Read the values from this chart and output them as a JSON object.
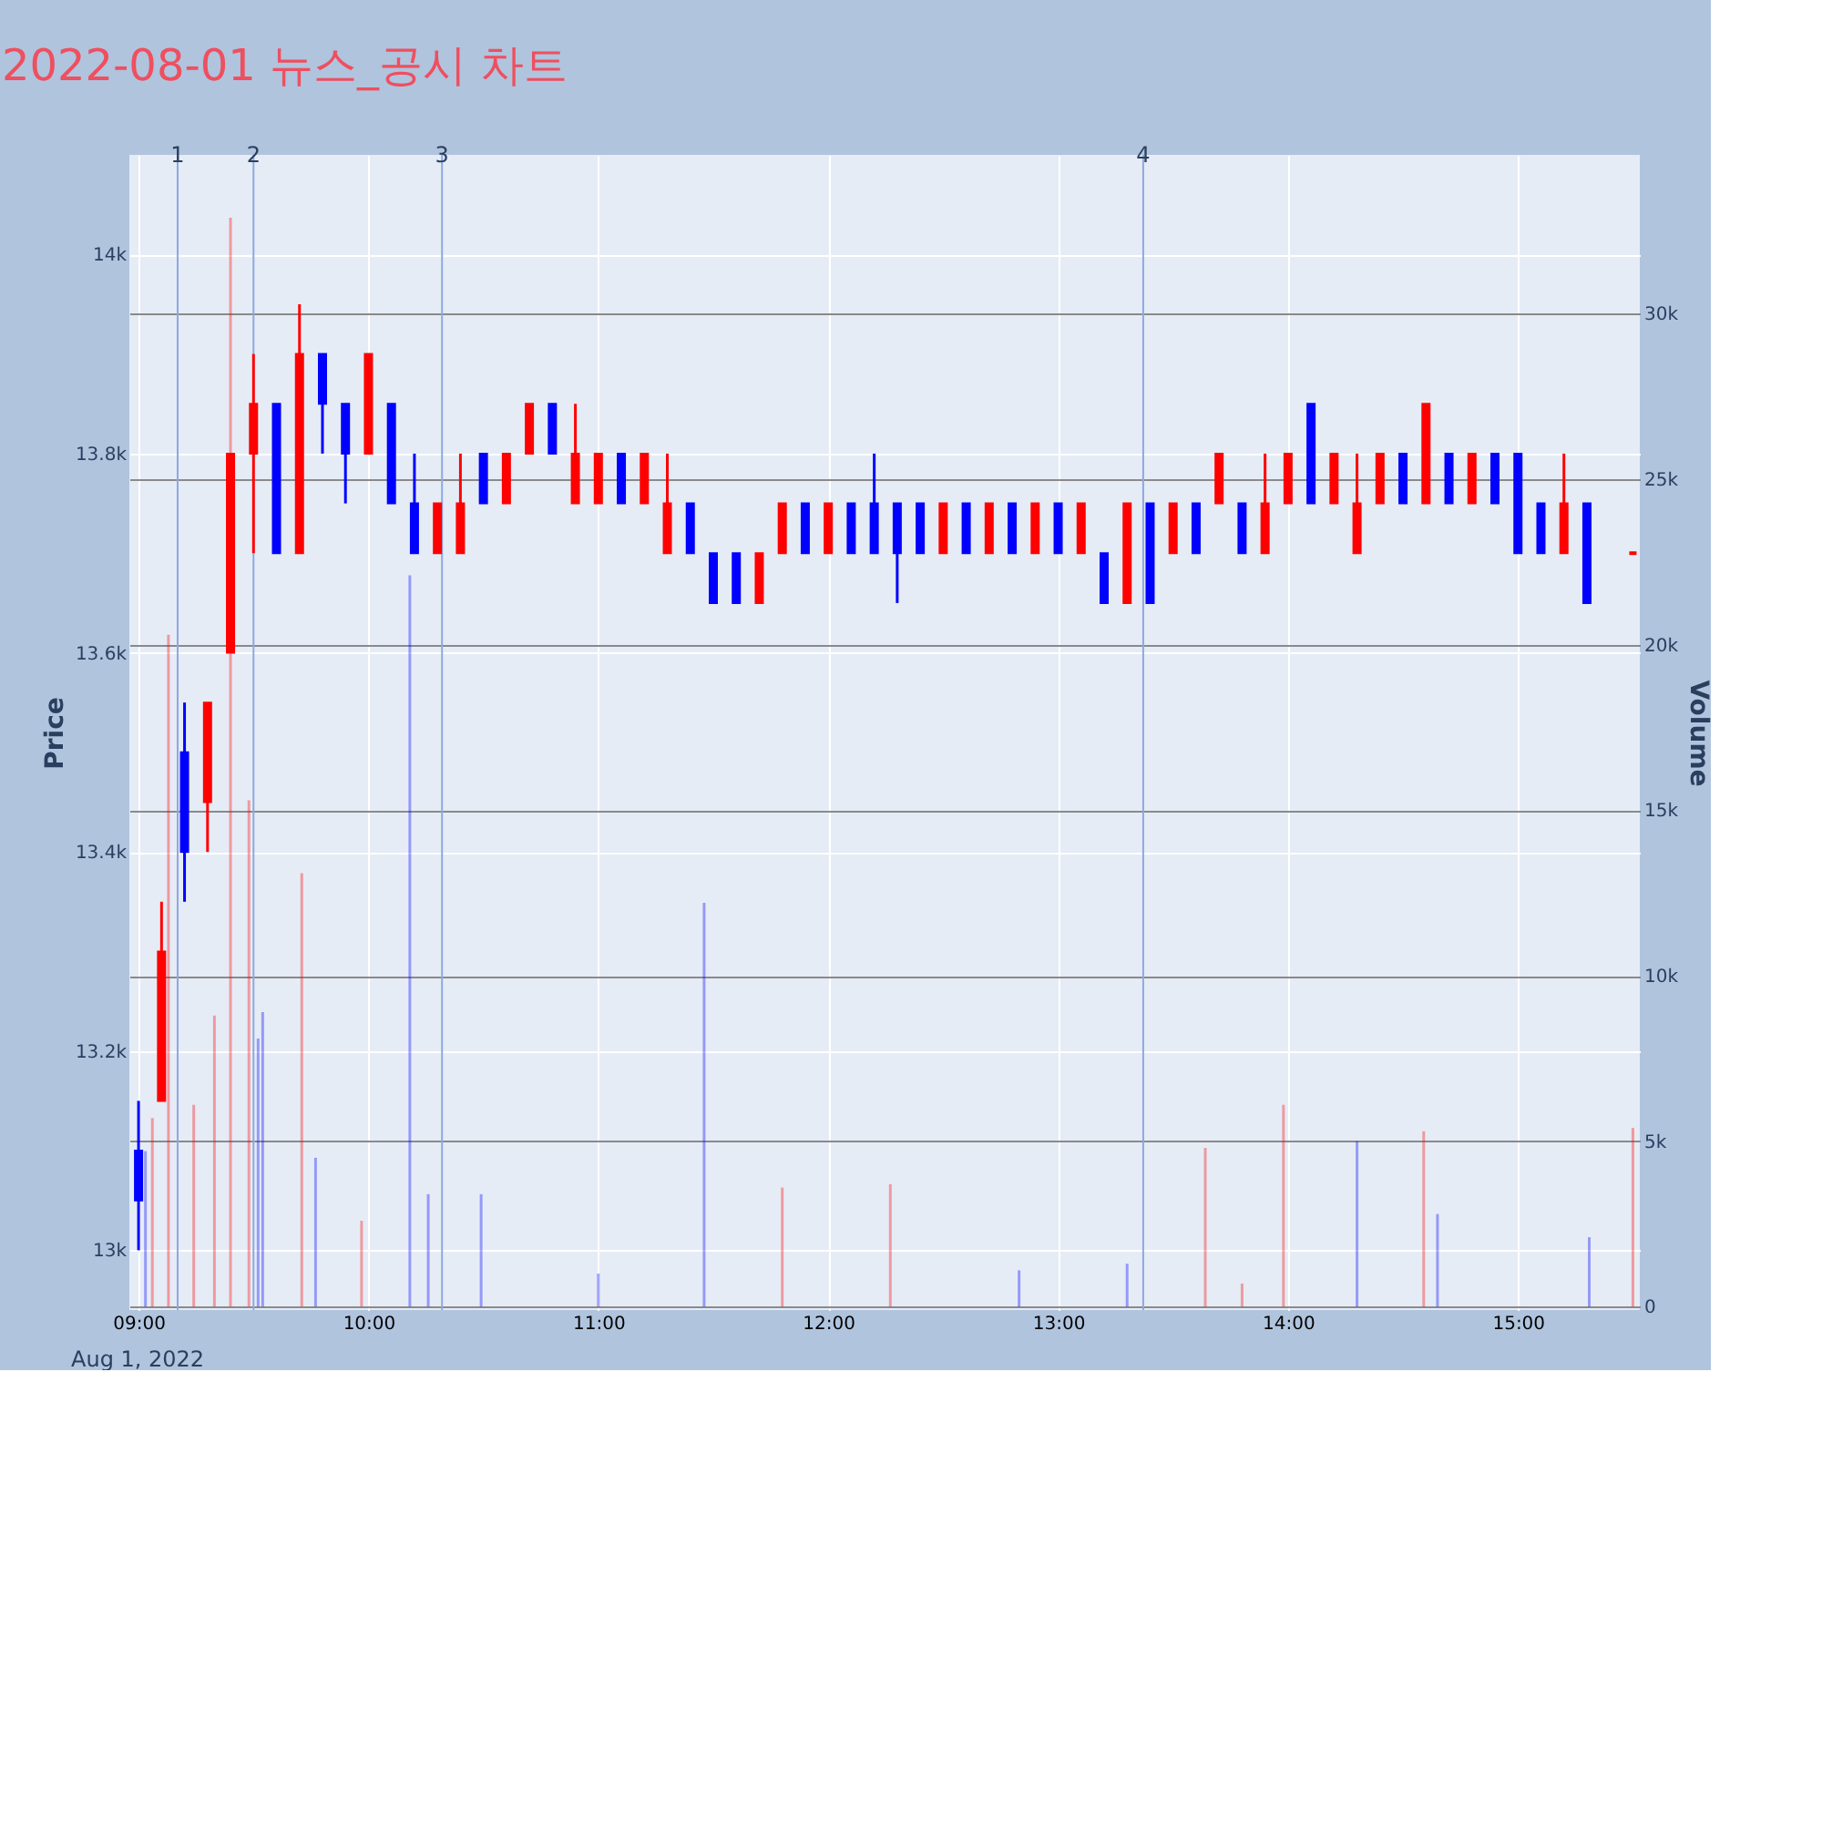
{
  "chart_data": {
    "type": "candlestick",
    "title": "2022-08-01 뉴스_공시 차트",
    "ylabel": "Price",
    "y2label": "Volume",
    "xlim": [
      8.96,
      15.53
    ],
    "xticks": [
      {
        "value": 9,
        "label": "09:00"
      },
      {
        "value": 10,
        "label": "10:00"
      },
      {
        "value": 11,
        "label": "11:00"
      },
      {
        "value": 12,
        "label": "12:00"
      },
      {
        "value": 13,
        "label": "13:00"
      },
      {
        "value": 14,
        "label": "14:00"
      },
      {
        "value": 15,
        "label": "15:00"
      }
    ],
    "ylim": [
      12940,
      14100
    ],
    "yticks": [
      {
        "value": 13000,
        "label": "13k"
      },
      {
        "value": 13200,
        "label": "13.2k"
      },
      {
        "value": 13400,
        "label": "13.4k"
      },
      {
        "value": 13600,
        "label": "13.6k"
      },
      {
        "value": 13800,
        "label": "13.8k"
      },
      {
        "value": 14000,
        "label": "14k"
      }
    ],
    "y2lim": [
      -100,
      34800
    ],
    "y2ticks": [
      {
        "value": 0,
        "label": "0"
      },
      {
        "value": 5000,
        "label": "5k"
      },
      {
        "value": 10000,
        "label": "10k"
      },
      {
        "value": 15000,
        "label": "15k"
      },
      {
        "value": 20000,
        "label": "20k"
      },
      {
        "value": 25000,
        "label": "25k"
      },
      {
        "value": 30000,
        "label": "30k"
      }
    ],
    "grid": true,
    "annotations": [
      "Aug 1, 2022",
      {
        "text": "1",
        "x": 9.17
      },
      {
        "text": "2",
        "x": 9.5
      },
      {
        "text": "3",
        "x": 10.32
      },
      {
        "text": "4",
        "x": 13.37
      }
    ],
    "ref_lines": [
      {
        "axis": "x",
        "value": 9.17,
        "color": "#8fa8e0"
      },
      {
        "axis": "x",
        "value": 9.5,
        "color": "#8fa8e0"
      },
      {
        "axis": "x",
        "value": 10.32,
        "color": "#8fa8e0"
      },
      {
        "axis": "x",
        "value": 13.37,
        "color": "#8fa8e0"
      }
    ],
    "series": [
      {
        "type": "candlestick",
        "x": [
          9.0,
          9.1,
          9.2,
          9.3,
          9.4,
          9.5,
          9.6,
          9.7,
          9.8,
          9.9,
          10.0,
          10.1,
          10.2,
          10.3,
          10.4,
          10.5,
          10.6,
          10.7,
          10.8,
          10.9,
          11.0,
          11.1,
          11.2,
          11.3,
          11.4,
          11.5,
          11.6,
          11.7,
          11.8,
          11.9,
          12.0,
          12.1,
          12.2,
          12.3,
          12.4,
          12.5,
          12.6,
          12.7,
          12.8,
          12.9,
          13.0,
          13.1,
          13.2,
          13.3,
          13.4,
          13.5,
          13.6,
          13.7,
          13.8,
          13.9,
          14.0,
          14.1,
          14.2,
          14.3,
          14.4,
          14.5,
          14.6,
          14.7,
          14.8,
          14.9,
          15.0,
          15.1,
          15.2,
          15.3,
          15.5
        ],
        "ohlc": [
          [
            13100,
            13150,
            13000,
            13050
          ],
          [
            13150,
            13350,
            13150,
            13300
          ],
          [
            13500,
            13550,
            13350,
            13400
          ],
          [
            13450,
            13550,
            13400,
            13550
          ],
          [
            13600,
            13800,
            13600,
            13800
          ],
          [
            13800,
            13900,
            13700,
            13850
          ],
          [
            13850,
            13850,
            13700,
            13700
          ],
          [
            13700,
            13950,
            13700,
            13900
          ],
          [
            13900,
            13900,
            13800,
            13850
          ],
          [
            13850,
            13850,
            13750,
            13800
          ],
          [
            13800,
            13900,
            13800,
            13900
          ],
          [
            13850,
            13850,
            13750,
            13750
          ],
          [
            13750,
            13800,
            13700,
            13700
          ],
          [
            13700,
            13750,
            13700,
            13750
          ],
          [
            13700,
            13800,
            13700,
            13750
          ],
          [
            13800,
            13800,
            13750,
            13750
          ],
          [
            13750,
            13800,
            13750,
            13800
          ],
          [
            13800,
            13850,
            13800,
            13850
          ],
          [
            13850,
            13850,
            13800,
            13800
          ],
          [
            13750,
            13850,
            13750,
            13800
          ],
          [
            13750,
            13800,
            13750,
            13800
          ],
          [
            13800,
            13800,
            13750,
            13750
          ],
          [
            13750,
            13800,
            13750,
            13800
          ],
          [
            13700,
            13800,
            13700,
            13750
          ],
          [
            13750,
            13750,
            13700,
            13700
          ],
          [
            13700,
            13700,
            13650,
            13650
          ],
          [
            13700,
            13700,
            13650,
            13650
          ],
          [
            13650,
            13700,
            13650,
            13700
          ],
          [
            13700,
            13750,
            13700,
            13750
          ],
          [
            13750,
            13750,
            13700,
            13700
          ],
          [
            13700,
            13750,
            13700,
            13750
          ],
          [
            13750,
            13750,
            13700,
            13700
          ],
          [
            13750,
            13800,
            13700,
            13700
          ],
          [
            13750,
            13750,
            13650,
            13700
          ],
          [
            13750,
            13750,
            13700,
            13700
          ],
          [
            13700,
            13750,
            13700,
            13750
          ],
          [
            13750,
            13750,
            13700,
            13700
          ],
          [
            13700,
            13750,
            13700,
            13750
          ],
          [
            13750,
            13750,
            13700,
            13700
          ],
          [
            13700,
            13750,
            13700,
            13750
          ],
          [
            13750,
            13750,
            13700,
            13700
          ],
          [
            13700,
            13750,
            13700,
            13750
          ],
          [
            13700,
            13700,
            13650,
            13650
          ],
          [
            13650,
            13750,
            13650,
            13750
          ],
          [
            13750,
            13750,
            13650,
            13650
          ],
          [
            13700,
            13750,
            13700,
            13750
          ],
          [
            13750,
            13750,
            13700,
            13700
          ],
          [
            13750,
            13800,
            13750,
            13800
          ],
          [
            13750,
            13750,
            13700,
            13700
          ],
          [
            13700,
            13800,
            13700,
            13750
          ],
          [
            13750,
            13800,
            13750,
            13800
          ],
          [
            13850,
            13850,
            13750,
            13750
          ],
          [
            13750,
            13800,
            13750,
            13800
          ],
          [
            13700,
            13800,
            13700,
            13750
          ],
          [
            13750,
            13800,
            13750,
            13800
          ],
          [
            13800,
            13800,
            13750,
            13750
          ],
          [
            13750,
            13850,
            13750,
            13850
          ],
          [
            13800,
            13800,
            13750,
            13750
          ],
          [
            13750,
            13800,
            13750,
            13800
          ],
          [
            13800,
            13800,
            13750,
            13750
          ],
          [
            13800,
            13800,
            13700,
            13700
          ],
          [
            13750,
            13750,
            13700,
            13700
          ],
          [
            13700,
            13800,
            13700,
            13750
          ],
          [
            13750,
            13750,
            13650,
            13650
          ],
          [
            13700,
            13700,
            13700,
            13700
          ]
        ],
        "colors": [
          "#0000ff",
          "#ff0000",
          "#0000ff",
          "#ff0000",
          "#ff0000",
          "#ff0000",
          "#0000ff",
          "#ff0000",
          "#0000ff",
          "#0000ff",
          "#ff0000",
          "#0000ff",
          "#0000ff",
          "#ff0000",
          "#ff0000",
          "#0000ff",
          "#ff0000",
          "#ff0000",
          "#0000ff",
          "#ff0000",
          "#ff0000",
          "#0000ff",
          "#ff0000",
          "#ff0000",
          "#0000ff",
          "#0000ff",
          "#0000ff",
          "#ff0000",
          "#ff0000",
          "#0000ff",
          "#ff0000",
          "#0000ff",
          "#0000ff",
          "#0000ff",
          "#0000ff",
          "#ff0000",
          "#0000ff",
          "#ff0000",
          "#0000ff",
          "#ff0000",
          "#0000ff",
          "#ff0000",
          "#0000ff",
          "#ff0000",
          "#0000ff",
          "#ff0000",
          "#0000ff",
          "#ff0000",
          "#0000ff",
          "#ff0000",
          "#ff0000",
          "#0000ff",
          "#ff0000",
          "#ff0000",
          "#ff0000",
          "#0000ff",
          "#ff0000",
          "#0000ff",
          "#ff0000",
          "#0000ff",
          "#0000ff",
          "#0000ff",
          "#ff0000",
          "#0000ff",
          "#ff0000"
        ]
      },
      {
        "type": "bar",
        "axis": "y2",
        "x": [
          9.03,
          9.06,
          9.13,
          9.24,
          9.33,
          9.4,
          9.48,
          9.52,
          9.54,
          9.71,
          9.77,
          9.97,
          10.18,
          10.26,
          10.49,
          11.0,
          11.46,
          11.8,
          12.27,
          12.83,
          13.3,
          13.64,
          13.8,
          13.98,
          14.3,
          14.59,
          14.65,
          15.31,
          15.5
        ],
        "values": [
          4700,
          5700,
          20300,
          6100,
          8800,
          32900,
          15300,
          8100,
          8900,
          13100,
          4500,
          2600,
          22100,
          3400,
          3400,
          1000,
          12200,
          3600,
          3700,
          1100,
          1300,
          4800,
          700,
          6100,
          5000,
          5300,
          2800,
          2100,
          5400
        ],
        "colors": [
          "#0000ff",
          "#ff0000",
          "#ff0000",
          "#ff0000",
          "#ff0000",
          "#ff0000",
          "#ff0000",
          "#0000ff",
          "#0000ff",
          "#ff0000",
          "#0000ff",
          "#ff0000",
          "#0000ff",
          "#0000ff",
          "#0000ff",
          "#0000ff",
          "#0000ff",
          "#ff0000",
          "#ff0000",
          "#0000ff",
          "#0000ff",
          "#ff0000",
          "#ff0000",
          "#ff0000",
          "#0000ff",
          "#ff0000",
          "#0000ff",
          "#0000ff",
          "#ff0000"
        ]
      }
    ]
  }
}
